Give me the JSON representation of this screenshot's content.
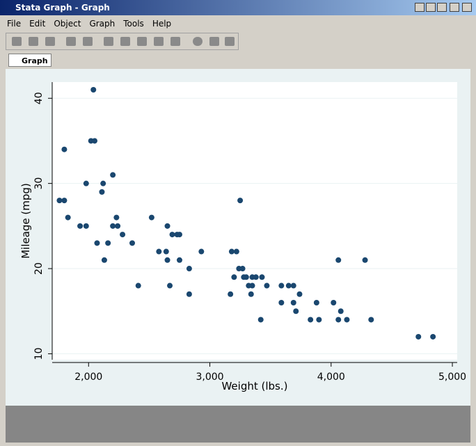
{
  "window": {
    "title": "Stata Graph - Graph",
    "menus": [
      "File",
      "Edit",
      "Object",
      "Graph",
      "Tools",
      "Help"
    ],
    "tab": "Graph"
  },
  "chart_data": {
    "type": "scatter",
    "x_label": "Weight (lbs.)",
    "y_label": "Mileage (mpg)",
    "color": "#1a476f",
    "grid": true,
    "xlim": [
      1700,
      5040
    ],
    "ylim": [
      9.3,
      41.9
    ],
    "xticks": [
      {
        "value": 2000,
        "label": "2,000"
      },
      {
        "value": 3000,
        "label": "3,000"
      },
      {
        "value": 4000,
        "label": "4,000"
      },
      {
        "value": 5000,
        "label": "5,000"
      }
    ],
    "yticks": [
      10,
      20,
      30,
      40
    ],
    "x": [
      1760,
      1800,
      1800,
      1830,
      1930,
      1980,
      1980,
      2040,
      2020,
      2050,
      2070,
      2110,
      2120,
      2130,
      2160,
      2200,
      2200,
      2230,
      2240,
      2280,
      2360,
      2410,
      2520,
      2580,
      2640,
      2650,
      2650,
      2670,
      2690,
      2730,
      2750,
      2750,
      2830,
      2830,
      2930,
      3170,
      3180,
      3200,
      3220,
      3250,
      3240,
      3270,
      3280,
      3300,
      3320,
      3340,
      3350,
      3350,
      3380,
      3420,
      3430,
      3470,
      3590,
      3590,
      3650,
      3690,
      3690,
      3710,
      3740,
      3830,
      3880,
      3900,
      4020,
      4060,
      4060,
      4080,
      4130,
      4280,
      4330,
      4720,
      4840
    ],
    "y": [
      28,
      28,
      34,
      26,
      25,
      30,
      25,
      41,
      35,
      35,
      23,
      29,
      30,
      21,
      23,
      31,
      25,
      26,
      25,
      24,
      23,
      18,
      26,
      22,
      22,
      25,
      21,
      18,
      24,
      24,
      24,
      21,
      20,
      17,
      22,
      17,
      22,
      19,
      22,
      28,
      20,
      20,
      19,
      19,
      18,
      17,
      19,
      18,
      19,
      14,
      19,
      18,
      16,
      18,
      18,
      18,
      16,
      15,
      17,
      14,
      16,
      14,
      16,
      21,
      14,
      15,
      14,
      21,
      14,
      12,
      12
    ]
  }
}
